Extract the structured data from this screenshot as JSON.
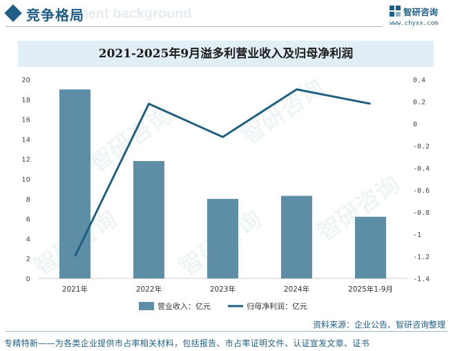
{
  "header": {
    "section_title": "竞争格局",
    "ghost_text": "ment background",
    "brand_name": "智研咨询",
    "brand_url": "www.chyxx.com",
    "watermark": "智研咨询"
  },
  "chart_data": {
    "type": "bar",
    "title": "2021-2025年9月溢多利营业收入及归母净利润",
    "categories": [
      "2021年",
      "2022年",
      "2023年",
      "2024年",
      "2025年1-9月"
    ],
    "series": [
      {
        "name": "营业收入：亿元",
        "type": "bar",
        "axis": "left",
        "values": [
          19.0,
          11.8,
          8.0,
          8.3,
          6.2
        ],
        "color": "#5e8ea6"
      },
      {
        "name": "归母净利润：亿元",
        "type": "line",
        "axis": "right",
        "values": [
          -1.2,
          0.18,
          -0.12,
          0.31,
          0.18
        ],
        "color": "#1f5f80"
      }
    ],
    "y_left": {
      "min": 0,
      "max": 20,
      "ticks": [
        "0",
        "2",
        "4",
        "6",
        "8",
        "10",
        "12",
        "14",
        "16",
        "18",
        "20"
      ]
    },
    "y_right": {
      "min": -1.4,
      "max": 0.4,
      "ticks": [
        "-1.4",
        "-1.2",
        "-1",
        "-0.8",
        "-0.6",
        "-0.4",
        "-0.2",
        "0",
        "0.2",
        "0.4"
      ]
    },
    "legend_position": "bottom-center",
    "grid": false
  },
  "footer": {
    "source": "资料来源：企业公告、智研咨询整理",
    "tagline": "专精特新——为各类企业提供市占率相关材料，包括报告、市占率证明文件、认证宣发文章、证书"
  }
}
